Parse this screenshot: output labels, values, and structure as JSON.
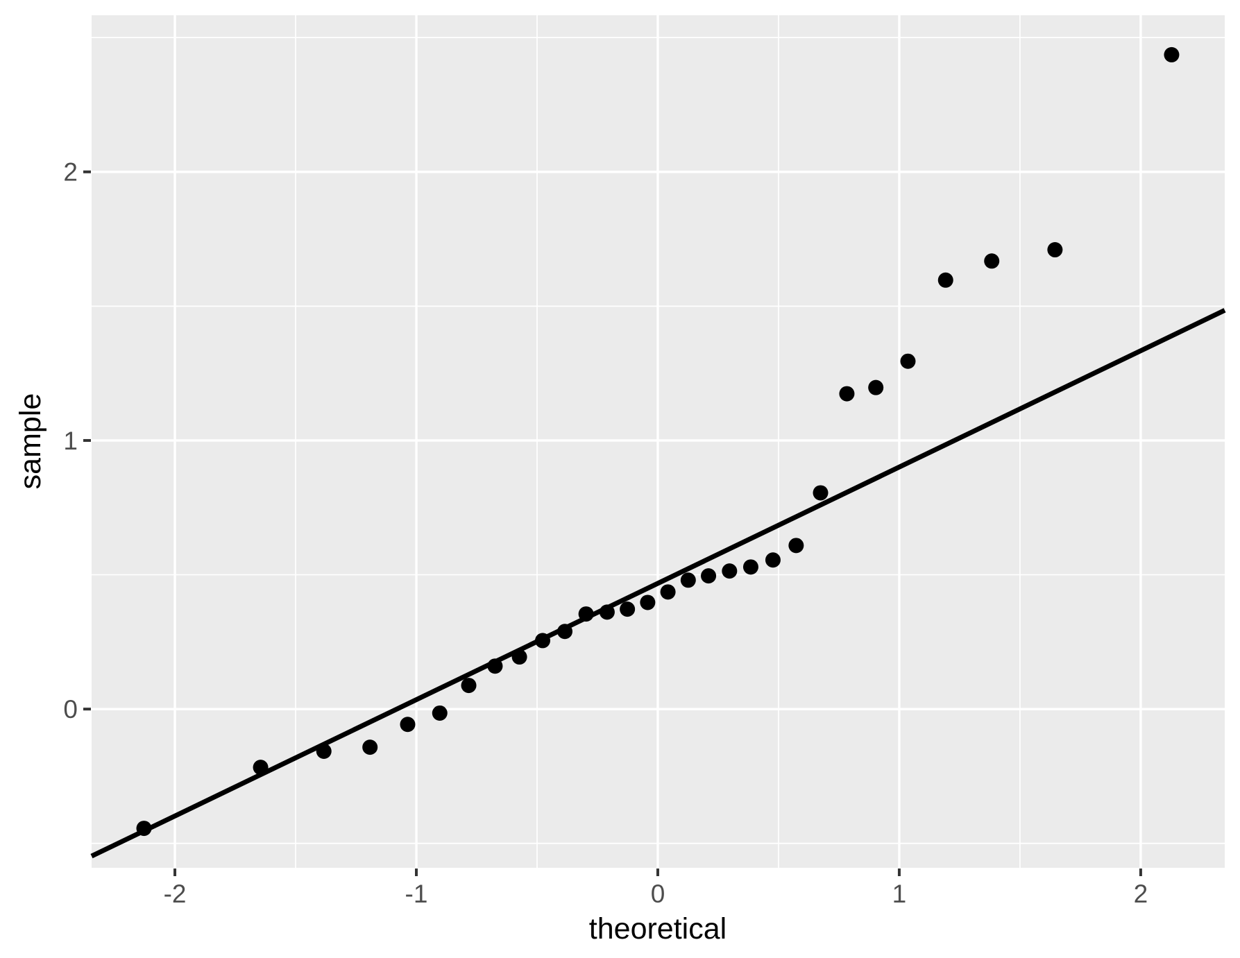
{
  "chart_data": {
    "type": "scatter",
    "title": "",
    "xlabel": "theoretical",
    "ylabel": "sample",
    "xlim": [
      -2.345,
      2.348
    ],
    "ylim": [
      -0.591,
      2.583
    ],
    "grid": "on",
    "legend": "none",
    "x_major_ticks": [
      -2,
      -1,
      0,
      1,
      2
    ],
    "x_tick_labels": [
      "-2",
      "-1",
      "0",
      "1",
      "2"
    ],
    "y_major_ticks": [
      0,
      1,
      2
    ],
    "y_tick_labels": [
      "0",
      "1",
      "2"
    ],
    "x_minor_gridlines": [
      -1.5,
      -0.5,
      0.5,
      1.5
    ],
    "y_minor_gridlines": [
      -0.5,
      0.5,
      1.5,
      2.5
    ],
    "series": [
      {
        "name": "sample-quantile-points",
        "type": "points",
        "x": [
          -2.128,
          -1.645,
          -1.383,
          -1.192,
          -1.036,
          -0.903,
          -0.783,
          -0.674,
          -0.573,
          -0.477,
          -0.385,
          -0.297,
          -0.21,
          -0.126,
          -0.042,
          0.042,
          0.126,
          0.21,
          0.297,
          0.385,
          0.477,
          0.573,
          0.674,
          0.783,
          0.903,
          1.036,
          1.192,
          1.383,
          1.645,
          2.128
        ],
        "y": [
          -0.444,
          -0.217,
          -0.157,
          -0.142,
          -0.057,
          -0.015,
          0.088,
          0.16,
          0.194,
          0.255,
          0.289,
          0.354,
          0.361,
          0.372,
          0.397,
          0.436,
          0.48,
          0.496,
          0.514,
          0.529,
          0.555,
          0.609,
          0.805,
          1.174,
          1.197,
          1.295,
          1.597,
          1.668,
          1.71,
          2.436
        ]
      },
      {
        "name": "qq-reference-line",
        "type": "line",
        "slope": 0.433,
        "intercept": 0.468
      }
    ]
  },
  "style": {
    "panel_fill": "#EBEBEB",
    "grid_color": "#FFFFFF",
    "point_color": "#000000",
    "line_color": "#000000",
    "tick_color": "#333333",
    "tick_label_color": "#4D4D4D",
    "axis_title_color": "#000000",
    "background": "#FFFFFF"
  }
}
